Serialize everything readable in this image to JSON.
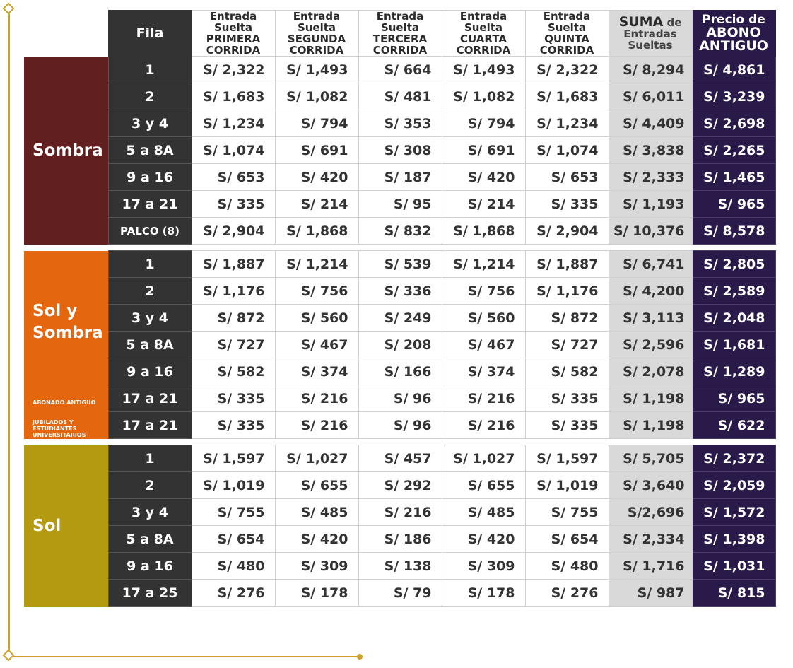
{
  "headers": {
    "fila": "Fila",
    "primera": [
      "Entrada",
      "Suelta",
      "PRIMERA",
      "CORRIDA"
    ],
    "segunda": [
      "Entrada",
      "Suelta",
      "SEGUNDA",
      "CORRIDA"
    ],
    "tercera": [
      "Entrada",
      "Suelta",
      "TERCERA",
      "CORRIDA"
    ],
    "cuarta": [
      "Entrada",
      "Suelta",
      "CUARTA",
      "CORRIDA"
    ],
    "quinta": [
      "Entrada",
      "Suelta",
      "QUINTA",
      "CORRIDA"
    ],
    "suma": {
      "big": "SUMA",
      "rest": " de",
      "l2": "Entradas",
      "l3": "Sueltas"
    },
    "abono": {
      "l1": "Precio de",
      "l2": "ABONO",
      "l3": "ANTIGUO"
    }
  },
  "colors": {
    "sombra": "#61201f",
    "solysombra": "#e4670f",
    "sol": "#b39a10",
    "abono": "#2a1a4a",
    "fila": "#333333",
    "suma": "#d9d9d9",
    "frame": "#c9a227"
  },
  "sections": [
    {
      "name": "Sombra",
      "notes": [],
      "rows": [
        {
          "fila": "1",
          "values": [
            "S/ 2,322",
            "S/ 1,493",
            "S/ 664",
            "S/ 1,493",
            "S/ 2,322"
          ],
          "suma": "S/ 8,294",
          "abono": "S/ 4,861"
        },
        {
          "fila": "2",
          "values": [
            "S/ 1,683",
            "S/ 1,082",
            "S/ 481",
            "S/ 1,082",
            "S/ 1,683"
          ],
          "suma": "S/ 6,011",
          "abono": "S/ 3,239"
        },
        {
          "fila": "3 y 4",
          "values": [
            "S/ 1,234",
            "S/ 794",
            "S/ 353",
            "S/ 794",
            "S/ 1,234"
          ],
          "suma": "S/ 4,409",
          "abono": "S/ 2,698"
        },
        {
          "fila": "5 a 8A",
          "values": [
            "S/ 1,074",
            "S/ 691",
            "S/ 308",
            "S/ 691",
            "S/ 1,074"
          ],
          "suma": "S/ 3,838",
          "abono": "S/ 2,265"
        },
        {
          "fila": "9 a 16",
          "values": [
            "S/ 653",
            "S/ 420",
            "S/ 187",
            "S/ 420",
            "S/ 653"
          ],
          "suma": "S/ 2,333",
          "abono": "S/ 1,465"
        },
        {
          "fila": "17 a 21",
          "values": [
            "S/ 335",
            "S/ 214",
            "S/ 95",
            "S/ 214",
            "S/ 335"
          ],
          "suma": "S/ 1,193",
          "abono": "S/ 965"
        },
        {
          "fila": "PALCO (8)",
          "small": true,
          "values": [
            "S/ 2,904",
            "S/ 1,868",
            "S/ 832",
            "S/ 1,868",
            "S/ 2,904"
          ],
          "suma": "S/ 10,376",
          "abono": "S/ 8,578"
        }
      ]
    },
    {
      "name": "Sol y Sombra",
      "notes": [
        "ABONADO ANTIGUO",
        "JUBILADOS Y ESTUDIANTES UNIVERSITARIOS"
      ],
      "rows": [
        {
          "fila": "1",
          "values": [
            "S/ 1,887",
            "S/ 1,214",
            "S/ 539",
            "S/ 1,214",
            "S/ 1,887"
          ],
          "suma": "S/ 6,741",
          "abono": "S/ 2,805"
        },
        {
          "fila": "2",
          "values": [
            "S/ 1,176",
            "S/ 756",
            "S/ 336",
            "S/ 756",
            "S/ 1,176"
          ],
          "suma": "S/ 4,200",
          "abono": "S/ 2,589"
        },
        {
          "fila": "3 y 4",
          "values": [
            "S/ 872",
            "S/ 560",
            "S/ 249",
            "S/ 560",
            "S/ 872"
          ],
          "suma": "S/ 3,113",
          "abono": "S/ 2,048"
        },
        {
          "fila": "5 a 8A",
          "values": [
            "S/ 727",
            "S/ 467",
            "S/ 208",
            "S/ 467",
            "S/ 727"
          ],
          "suma": "S/ 2,596",
          "abono": "S/ 1,681"
        },
        {
          "fila": "9 a 16",
          "values": [
            "S/ 582",
            "S/ 374",
            "S/ 166",
            "S/ 374",
            "S/ 582"
          ],
          "suma": "S/ 2,078",
          "abono": "S/ 1,289"
        },
        {
          "fila": "17 a 21",
          "values": [
            "S/ 335",
            "S/ 216",
            "S/ 96",
            "S/ 216",
            "S/ 335"
          ],
          "suma": "S/ 1,198",
          "abono": "S/ 965"
        },
        {
          "fila": "17 a 21",
          "values": [
            "S/ 335",
            "S/ 216",
            "S/ 96",
            "S/ 216",
            "S/ 335"
          ],
          "suma": "S/ 1,198",
          "abono": "S/ 622"
        }
      ]
    },
    {
      "name": "Sol",
      "notes": [],
      "rows": [
        {
          "fila": "1",
          "values": [
            "S/ 1,597",
            "S/ 1,027",
            "S/ 457",
            "S/ 1,027",
            "S/ 1,597"
          ],
          "suma": "S/ 5,705",
          "abono": "S/ 2,372"
        },
        {
          "fila": "2",
          "values": [
            "S/ 1,019",
            "S/ 655",
            "S/ 292",
            "S/ 655",
            "S/ 1,019"
          ],
          "suma": "S/ 3,640",
          "abono": "S/ 2,059"
        },
        {
          "fila": "3 y 4",
          "values": [
            "S/ 755",
            "S/ 485",
            "S/ 216",
            "S/ 485",
            "S/ 755"
          ],
          "suma": "S/2,696",
          "abono": "S/ 1,572"
        },
        {
          "fila": "5 a 8A",
          "values": [
            "S/ 654",
            "S/ 420",
            "S/ 186",
            "S/ 420",
            "S/ 654"
          ],
          "suma": "S/ 2,334",
          "abono": "S/ 1,398"
        },
        {
          "fila": "9 a 16",
          "values": [
            "S/ 480",
            "S/ 309",
            "S/ 138",
            "S/ 309",
            "S/ 480"
          ],
          "suma": "S/ 1,716",
          "abono": "S/ 1,031"
        },
        {
          "fila": "17 a 25",
          "values": [
            "S/ 276",
            "S/ 178",
            "S/ 79",
            "S/ 178",
            "S/ 276"
          ],
          "suma": "S/ 987",
          "abono": "S/ 815"
        }
      ]
    }
  ]
}
